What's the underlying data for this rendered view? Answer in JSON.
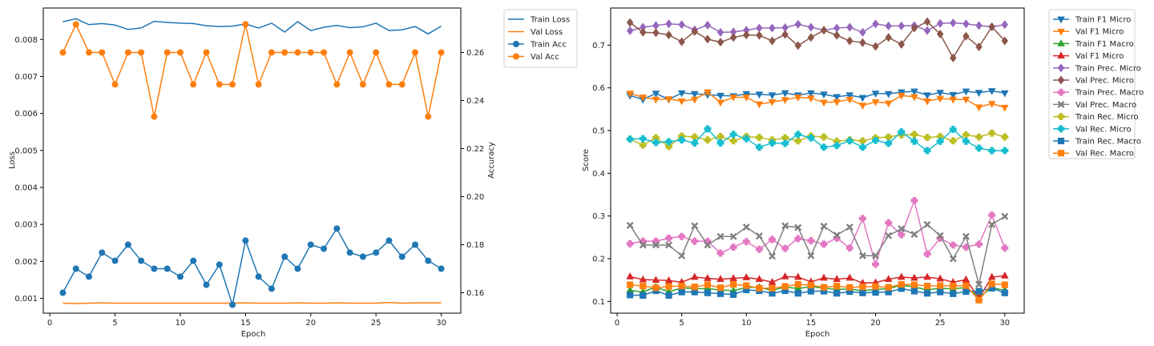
{
  "colors": {
    "blue": "#1f77b4",
    "orange": "#ff7f0e",
    "green": "#2ca02c",
    "red": "#d62728",
    "purple": "#9467bd",
    "brown": "#8c564b",
    "pink": "#e377c2",
    "gray": "#7f7f7f",
    "olive": "#bcbd22",
    "cyan": "#17becf"
  },
  "chart_data": [
    {
      "type": "line",
      "title": "",
      "xlabel": "Epoch",
      "ylabel": "Loss",
      "y2label": "Accuracy",
      "x": [
        1,
        2,
        3,
        4,
        5,
        6,
        7,
        8,
        9,
        10,
        11,
        12,
        13,
        14,
        15,
        16,
        17,
        18,
        19,
        20,
        21,
        22,
        23,
        24,
        25,
        26,
        27,
        28,
        29,
        30
      ],
      "xlim": [
        -0.5,
        31.5
      ],
      "ylim": [
        0.0006,
        0.00885
      ],
      "y2lim": [
        0.1515,
        0.2785
      ],
      "xticks": [
        0,
        5,
        10,
        15,
        20,
        25,
        30
      ],
      "yticks": [
        0.001,
        0.002,
        0.003,
        0.004,
        0.005,
        0.006,
        0.007,
        0.008
      ],
      "y2ticks": [
        0.16,
        0.18,
        0.2,
        0.22,
        0.24,
        0.26
      ],
      "legend_position": "outside-right-top",
      "series": [
        {
          "name": "Train Loss",
          "axis": "left",
          "color": "blue",
          "marker": "none",
          "values": [
            0.00848,
            0.00856,
            0.0084,
            0.00843,
            0.00839,
            0.00827,
            0.00831,
            0.00849,
            0.00846,
            0.00844,
            0.00843,
            0.00837,
            0.00835,
            0.00836,
            0.00842,
            0.00831,
            0.00844,
            0.0082,
            0.00848,
            0.00824,
            0.00833,
            0.00838,
            0.00832,
            0.00834,
            0.00844,
            0.00824,
            0.00826,
            0.00835,
            0.00815,
            0.00836
          ]
        },
        {
          "name": "Val Loss",
          "axis": "left",
          "color": "orange",
          "marker": "none",
          "values": [
            0.00087,
            0.00086,
            0.00087,
            0.00088,
            0.00087,
            0.00087,
            0.00087,
            0.00087,
            0.00087,
            0.00087,
            0.00087,
            0.00087,
            0.00087,
            0.00087,
            0.00088,
            0.00087,
            0.00087,
            0.00087,
            0.00088,
            0.00087,
            0.00087,
            0.00088,
            0.00087,
            0.00087,
            0.00087,
            0.00089,
            0.00087,
            0.00088,
            0.00088,
            0.00088
          ]
        },
        {
          "name": "Train Acc",
          "axis": "right",
          "color": "blue",
          "marker": "circle",
          "values": [
            0.16,
            0.17,
            0.1667,
            0.1767,
            0.1733,
            0.18,
            0.1733,
            0.17,
            0.17,
            0.1667,
            0.1733,
            0.1633,
            0.1717,
            0.155,
            0.1817,
            0.1667,
            0.1617,
            0.175,
            0.17,
            0.18,
            0.1783,
            0.1867,
            0.1767,
            0.175,
            0.1767,
            0.1817,
            0.175,
            0.18,
            0.1733,
            0.17
          ]
        },
        {
          "name": "Val Acc",
          "axis": "right",
          "color": "orange",
          "marker": "circle",
          "values": [
            0.26,
            0.2717,
            0.26,
            0.26,
            0.2467,
            0.26,
            0.26,
            0.2333,
            0.26,
            0.26,
            0.2467,
            0.26,
            0.2467,
            0.2467,
            0.2717,
            0.2467,
            0.26,
            0.26,
            0.26,
            0.26,
            0.26,
            0.2467,
            0.26,
            0.2467,
            0.26,
            0.2467,
            0.2467,
            0.26,
            0.2333,
            0.26
          ]
        }
      ]
    },
    {
      "type": "line",
      "title": "",
      "xlabel": "Epoch",
      "ylabel": "Score",
      "x": [
        1,
        2,
        3,
        4,
        5,
        6,
        7,
        8,
        9,
        10,
        11,
        12,
        13,
        14,
        15,
        16,
        17,
        18,
        19,
        20,
        21,
        22,
        23,
        24,
        25,
        26,
        27,
        28,
        29,
        30
      ],
      "xlim": [
        -0.5,
        31.5
      ],
      "ylim": [
        0.0725,
        0.787
      ],
      "xticks": [
        0,
        5,
        10,
        15,
        20,
        25,
        30
      ],
      "yticks": [
        0.1,
        0.2,
        0.3,
        0.4,
        0.5,
        0.6,
        0.7
      ],
      "legend_position": "outside-right-top",
      "series": [
        {
          "name": "Train F1 Micro",
          "color": "blue",
          "marker": "tri_down",
          "values": [
            0.582,
            0.573,
            0.587,
            0.573,
            0.588,
            0.586,
            0.584,
            0.582,
            0.581,
            0.586,
            0.585,
            0.583,
            0.588,
            0.583,
            0.588,
            0.585,
            0.579,
            0.583,
            0.577,
            0.587,
            0.586,
            0.59,
            0.592,
            0.583,
            0.589,
            0.584,
            0.592,
            0.589,
            0.593,
            0.588
          ]
        },
        {
          "name": "Val F1 Micro",
          "color": "orange",
          "marker": "tri_down",
          "values": [
            0.587,
            0.578,
            0.573,
            0.574,
            0.569,
            0.573,
            0.59,
            0.566,
            0.578,
            0.578,
            0.562,
            0.567,
            0.572,
            0.578,
            0.576,
            0.566,
            0.567,
            0.573,
            0.559,
            0.567,
            0.564,
            0.582,
            0.579,
            0.569,
            0.575,
            0.573,
            0.573,
            0.555,
            0.563,
            0.554
          ]
        },
        {
          "name": "Train F1 Macro",
          "color": "green",
          "marker": "tri_up",
          "values": [
            0.126,
            0.122,
            0.134,
            0.122,
            0.132,
            0.13,
            0.13,
            0.127,
            0.125,
            0.133,
            0.133,
            0.126,
            0.134,
            0.13,
            0.135,
            0.131,
            0.128,
            0.129,
            0.125,
            0.128,
            0.13,
            0.138,
            0.134,
            0.127,
            0.131,
            0.129,
            0.133,
            0.11,
            0.132,
            0.126
          ]
        },
        {
          "name": "Val F1 Micro",
          "color": "red",
          "marker": "tri_up",
          "values": [
            0.158,
            0.151,
            0.15,
            0.149,
            0.145,
            0.157,
            0.154,
            0.152,
            0.154,
            0.156,
            0.152,
            0.145,
            0.158,
            0.157,
            0.146,
            0.155,
            0.152,
            0.155,
            0.143,
            0.144,
            0.152,
            0.157,
            0.155,
            0.157,
            0.153,
            0.145,
            0.151,
            0.108,
            0.157,
            0.16
          ]
        },
        {
          "name": "Train Prec. Micro",
          "color": "purple",
          "marker": "diamond",
          "values": [
            0.734,
            0.742,
            0.746,
            0.75,
            0.748,
            0.736,
            0.747,
            0.73,
            0.731,
            0.735,
            0.74,
            0.74,
            0.741,
            0.749,
            0.742,
            0.735,
            0.74,
            0.742,
            0.73,
            0.75,
            0.745,
            0.745,
            0.746,
            0.734,
            0.751,
            0.752,
            0.75,
            0.746,
            0.743,
            0.748
          ]
        },
        {
          "name": "Val Prec. Micro",
          "color": "brown",
          "marker": "diamond",
          "values": [
            0.753,
            0.73,
            0.729,
            0.724,
            0.708,
            0.732,
            0.714,
            0.707,
            0.718,
            0.724,
            0.723,
            0.71,
            0.725,
            0.699,
            0.718,
            0.735,
            0.723,
            0.71,
            0.706,
            0.697,
            0.718,
            0.702,
            0.74,
            0.755,
            0.726,
            0.67,
            0.721,
            0.696,
            0.743,
            0.71
          ]
        },
        {
          "name": "Train Prec. Macro",
          "color": "pink",
          "marker": "plus",
          "values": [
            0.235,
            0.241,
            0.241,
            0.248,
            0.252,
            0.241,
            0.241,
            0.213,
            0.227,
            0.24,
            0.222,
            0.245,
            0.224,
            0.247,
            0.242,
            0.234,
            0.248,
            0.225,
            0.294,
            0.187,
            0.284,
            0.256,
            0.336,
            0.211,
            0.248,
            0.232,
            0.227,
            0.234,
            0.302,
            0.225
          ]
        },
        {
          "name": "Val Prec. Macro",
          "color": "gray",
          "marker": "x",
          "values": [
            0.278,
            0.232,
            0.232,
            0.232,
            0.207,
            0.277,
            0.232,
            0.252,
            0.252,
            0.274,
            0.253,
            0.206,
            0.277,
            0.273,
            0.207,
            0.276,
            0.255,
            0.274,
            0.207,
            0.207,
            0.254,
            0.27,
            0.257,
            0.28,
            0.254,
            0.2,
            0.252,
            0.14,
            0.28,
            0.299
          ]
        },
        {
          "name": "Train Rec. Micro",
          "color": "olive",
          "marker": "plus",
          "values": [
            0.48,
            0.466,
            0.483,
            0.463,
            0.487,
            0.485,
            0.478,
            0.486,
            0.476,
            0.486,
            0.484,
            0.478,
            0.483,
            0.476,
            0.487,
            0.485,
            0.475,
            0.478,
            0.476,
            0.483,
            0.485,
            0.49,
            0.491,
            0.484,
            0.486,
            0.476,
            0.49,
            0.485,
            0.494,
            0.485
          ]
        },
        {
          "name": "Val Rec. Micro",
          "color": "cyan",
          "marker": "plus",
          "values": [
            0.48,
            0.481,
            0.472,
            0.474,
            0.478,
            0.471,
            0.504,
            0.471,
            0.491,
            0.481,
            0.461,
            0.471,
            0.47,
            0.491,
            0.483,
            0.461,
            0.465,
            0.476,
            0.461,
            0.477,
            0.47,
            0.497,
            0.475,
            0.453,
            0.475,
            0.503,
            0.475,
            0.459,
            0.453,
            0.453
          ]
        },
        {
          "name": "Train Rec. Macro",
          "color": "blue",
          "marker": "square",
          "values": [
            0.115,
            0.114,
            0.125,
            0.114,
            0.122,
            0.122,
            0.12,
            0.118,
            0.116,
            0.127,
            0.125,
            0.119,
            0.125,
            0.119,
            0.124,
            0.124,
            0.119,
            0.123,
            0.12,
            0.121,
            0.122,
            0.13,
            0.124,
            0.119,
            0.122,
            0.118,
            0.123,
            0.124,
            0.131,
            0.12
          ]
        },
        {
          "name": "Val Rec. Macro",
          "color": "orange",
          "marker": "square",
          "values": [
            0.139,
            0.136,
            0.132,
            0.135,
            0.136,
            0.134,
            0.139,
            0.132,
            0.14,
            0.137,
            0.131,
            0.131,
            0.135,
            0.14,
            0.138,
            0.133,
            0.136,
            0.133,
            0.134,
            0.135,
            0.133,
            0.14,
            0.139,
            0.136,
            0.137,
            0.136,
            0.137,
            0.103,
            0.141,
            0.139
          ]
        }
      ]
    }
  ]
}
